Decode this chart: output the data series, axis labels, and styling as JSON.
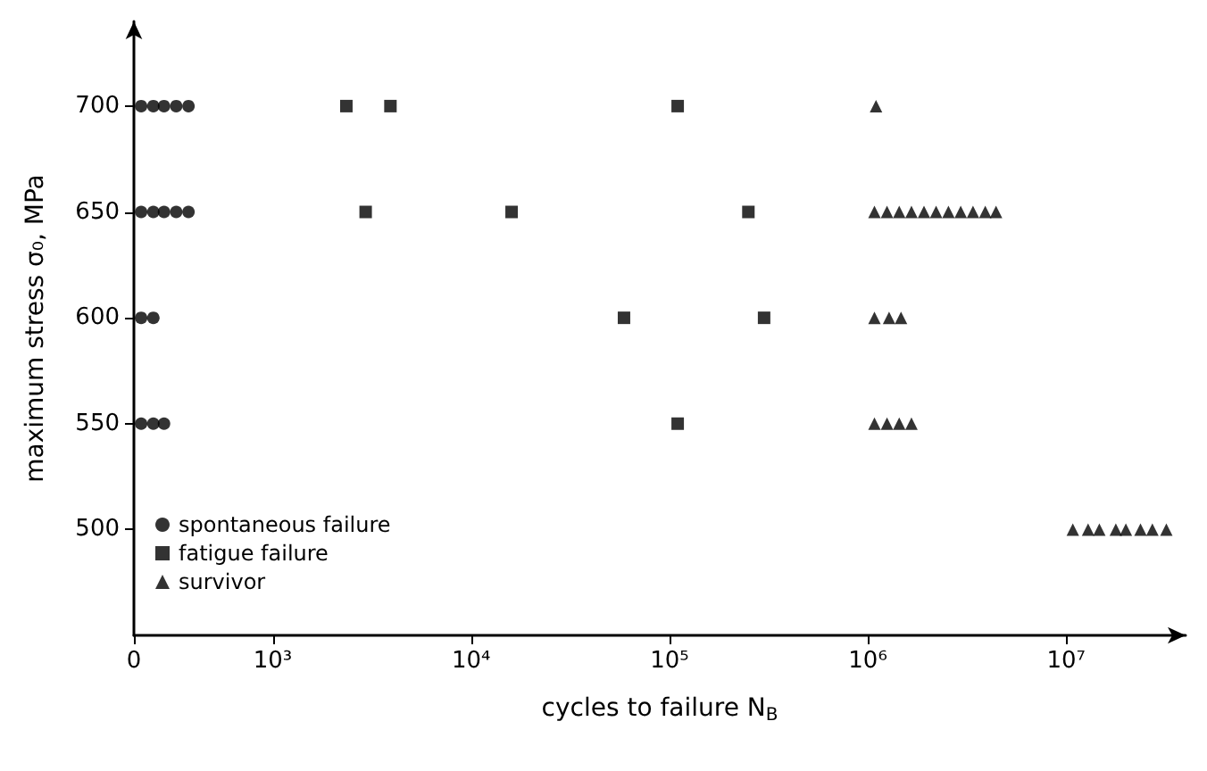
{
  "chart_data": {
    "type": "scatter",
    "xlabel": "cycles to failure N$_{B}$",
    "ylabel": "maximum stress σ₀, MPa",
    "log": "x",
    "xlim": [
      0,
      40000000
    ],
    "ylim": [
      450,
      740
    ],
    "xticks": [
      0,
      {
        "value": 1000,
        "label": "10³"
      },
      {
        "value": 10000,
        "label": "10⁴"
      },
      {
        "value": 100000,
        "label": "10⁵"
      },
      {
        "value": 1000000,
        "label": "10⁶"
      },
      {
        "value": 10000000,
        "label": "10⁷"
      }
    ],
    "yticks": [
      500,
      550,
      600,
      650,
      700
    ],
    "grid": false,
    "legend": "bottom left",
    "series": [
      {
        "name": "spontaneous failure",
        "color": "#000000",
        "marker": "circle",
        "x": [
          217,
          250,
          283,
          326,
          376,
          217,
          250,
          283,
          326,
          376,
          217,
          250,
          217,
          250,
          283
        ],
        "values": [
          700,
          700,
          700,
          700,
          700,
          650,
          650,
          650,
          650,
          650,
          600,
          600,
          550,
          550,
          550
        ]
      },
      {
        "name": "fatigue failure",
        "color": "#000000",
        "marker": "square",
        "x": [
          2350,
          3920,
          110000,
          2940,
          16000,
          250000,
          59000,
          300000,
          110000
        ],
        "values": [
          700,
          700,
          700,
          650,
          650,
          650,
          600,
          600,
          550
        ]
      },
      {
        "name": "survivor",
        "color": "#000000",
        "marker": "triangle",
        "x": [
          1100000,
          1080000,
          1250000,
          1440000,
          1660000,
          1920000,
          2210000,
          2550000,
          2940000,
          3390000,
          3910000,
          4430000,
          1080000,
          1280000,
          1470000,
          1080000,
          1250000,
          1440000,
          1660000,
          10800000,
          12900000,
          14700000,
          17800000,
          20000000,
          23700000,
          27200000,
          32000000
        ],
        "values": [
          700,
          650,
          650,
          650,
          650,
          650,
          650,
          650,
          650,
          650,
          650,
          650,
          600,
          600,
          600,
          550,
          550,
          550,
          550,
          500,
          500,
          500,
          500,
          500,
          500,
          500,
          500
        ]
      }
    ]
  }
}
